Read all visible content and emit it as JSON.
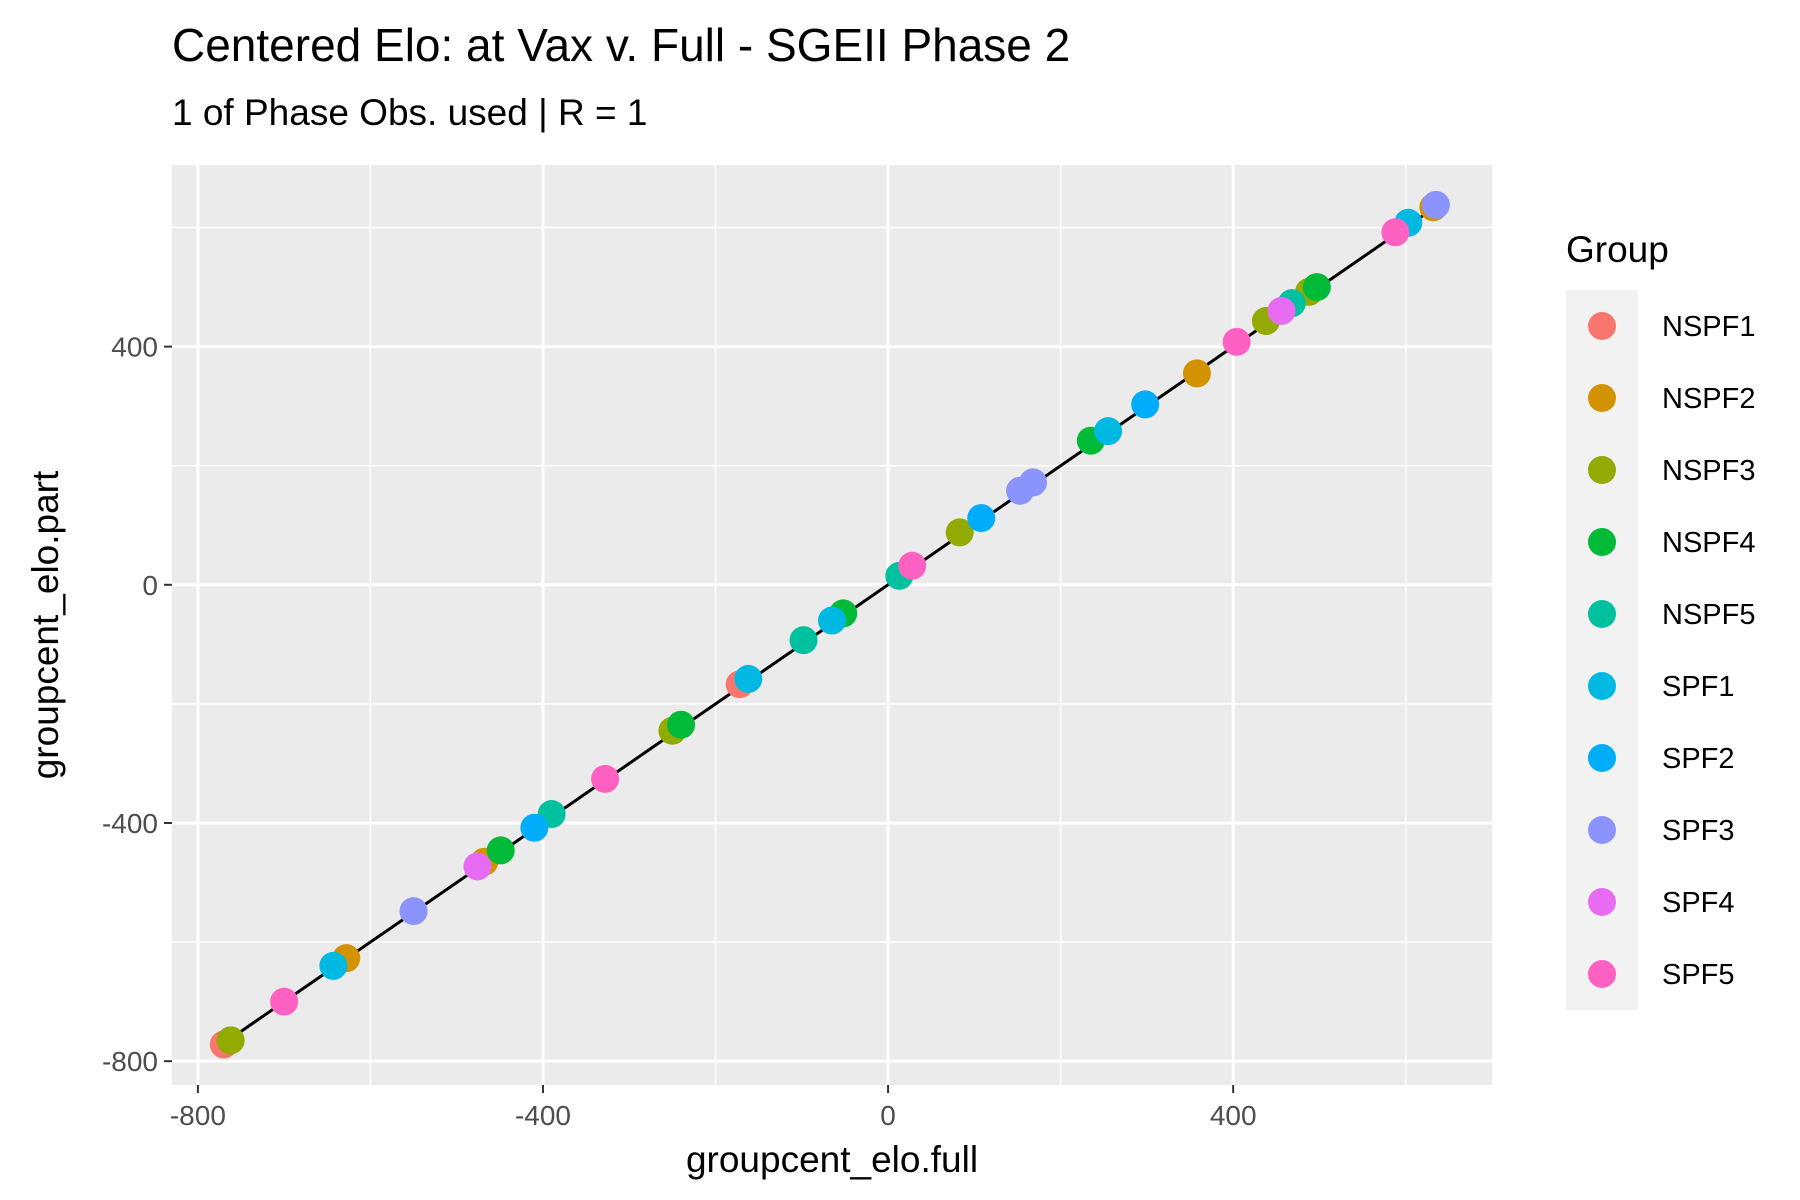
{
  "chart_data": {
    "type": "scatter",
    "title": "Centered Elo: at Vax v. Full - SGEII Phase 2",
    "subtitle": "1 of Phase Obs. used | R = 1",
    "xlabel": "groupcent_elo.full",
    "ylabel": "groupcent_elo.part",
    "xlim": [
      -830,
      700
    ],
    "ylim": [
      -840,
      705
    ],
    "x_ticks": [
      -800,
      -400,
      0,
      400
    ],
    "x_tick_labels": [
      "-800",
      "-400",
      "0",
      "400"
    ],
    "y_ticks": [
      -800,
      -400,
      0,
      400
    ],
    "y_tick_labels": [
      "-800",
      "-400",
      "0",
      "400"
    ],
    "grid": true,
    "reference_line": {
      "type": "identity",
      "from": -770,
      "to": 640
    },
    "legend": {
      "title": "Group",
      "position": "right"
    },
    "series": [
      {
        "name": "NSPF1",
        "color": "#F8766D",
        "points": [
          [
            -770,
            -772
          ],
          [
            -172,
            -167
          ]
        ]
      },
      {
        "name": "NSPF2",
        "color": "#D39200",
        "points": [
          [
            -628,
            -627
          ],
          [
            -468,
            -465
          ],
          [
            358,
            355
          ],
          [
            632,
            634
          ]
        ]
      },
      {
        "name": "NSPF3",
        "color": "#93AA00",
        "points": [
          [
            -762,
            -765
          ],
          [
            -250,
            -245
          ],
          [
            83,
            88
          ],
          [
            438,
            443
          ],
          [
            488,
            492
          ]
        ]
      },
      {
        "name": "NSPF4",
        "color": "#00BA38",
        "points": [
          [
            -449,
            -446
          ],
          [
            -240,
            -235
          ],
          [
            -52,
            -48
          ],
          [
            235,
            242
          ],
          [
            497,
            500
          ]
        ]
      },
      {
        "name": "NSPF5",
        "color": "#00C19F",
        "points": [
          [
            -390,
            -385
          ],
          [
            -98,
            -93
          ],
          [
            13,
            15
          ],
          [
            468,
            473
          ]
        ]
      },
      {
        "name": "SPF1",
        "color": "#00B9E3",
        "points": [
          [
            -643,
            -640
          ],
          [
            -162,
            -158
          ],
          [
            -65,
            -60
          ],
          [
            255,
            258
          ],
          [
            603,
            608
          ]
        ]
      },
      {
        "name": "SPF2",
        "color": "#00ADFA",
        "points": [
          [
            -410,
            -408
          ],
          [
            108,
            112
          ],
          [
            298,
            303
          ]
        ]
      },
      {
        "name": "SPF3",
        "color": "#8B93FF",
        "points": [
          [
            -550,
            -548
          ],
          [
            153,
            158
          ],
          [
            168,
            172
          ],
          [
            635,
            638
          ]
        ]
      },
      {
        "name": "SPF4",
        "color": "#E76BF3",
        "points": [
          [
            -476,
            -473
          ],
          [
            456,
            460
          ]
        ]
      },
      {
        "name": "SPF5",
        "color": "#FF61C3",
        "points": [
          [
            -700,
            -700
          ],
          [
            -328,
            -326
          ],
          [
            28,
            32
          ],
          [
            404,
            408
          ],
          [
            588,
            592
          ]
        ]
      }
    ]
  }
}
